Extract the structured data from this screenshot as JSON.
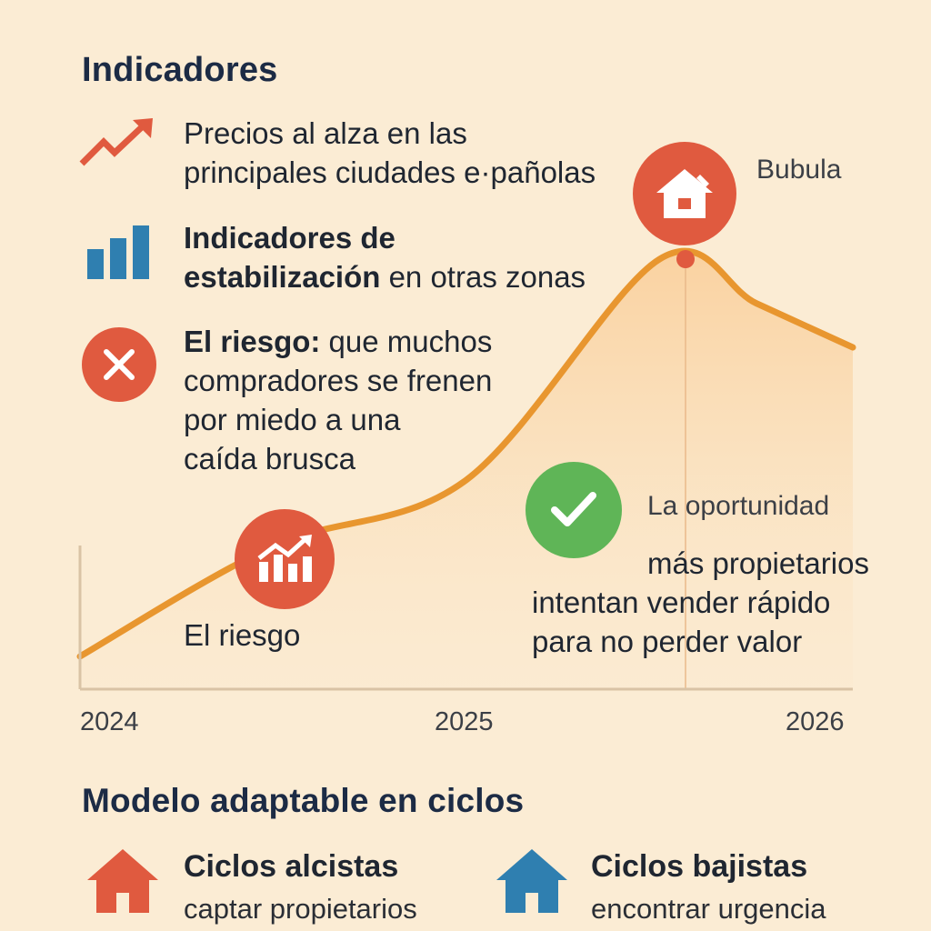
{
  "indicators": {
    "heading": "Indicadores",
    "items": [
      {
        "icon": "trending-up-icon",
        "bold": "Precios al alza en las",
        "line2": "principales ciudades e·pañolas",
        "color": "#e05a3f"
      },
      {
        "icon": "bar-chart-icon",
        "bold1": "Indicadores de",
        "bold2": "estabilización",
        "rest": " en otras zonas",
        "color": "#2f7fb0"
      },
      {
        "icon": "close-circle-icon",
        "bold": "El riesgo:",
        "rest": " que muchos",
        "line2": "compradores se frenen",
        "line3": "por miedo a una",
        "line4": "caída brusca",
        "color": "#e05a3f"
      }
    ]
  },
  "chart_data": {
    "type": "line",
    "x_ticks": [
      "2024",
      "2025",
      "2026"
    ],
    "curve": {
      "x": [
        2024.0,
        2024.5,
        2025.0,
        2025.5,
        2025.75,
        2026.0
      ],
      "y": [
        0.1,
        0.35,
        0.5,
        1.0,
        0.9,
        0.8
      ]
    },
    "annotations": {
      "peak_label": "Bubula",
      "peak_icon": "house-icon",
      "risk_label": "El riesgo",
      "risk_icon": "growth-chart-icon",
      "opportunity_title": "La oportunidad",
      "opportunity_icon": "check-icon",
      "opportunity_line1": "más propietarios",
      "opportunity_line2": "intentan vender rápido",
      "opportunity_line3": "para no perder valor"
    },
    "colors": {
      "line": "#e8962f",
      "fill": "#fbd9ad",
      "peak": "#e05a3f",
      "risk": "#e05a3f",
      "check": "#5fb557"
    }
  },
  "model": {
    "heading": "Modelo adaptable en ciclos",
    "items": [
      {
        "icon": "house-icon",
        "title": "Ciclos alcistas",
        "sub": "captar propietarios",
        "color": "#e05a3f"
      },
      {
        "icon": "house-icon",
        "title": "Ciclos bajistas",
        "sub": "encontrar urgencia",
        "color": "#2f7fb0"
      }
    ]
  }
}
